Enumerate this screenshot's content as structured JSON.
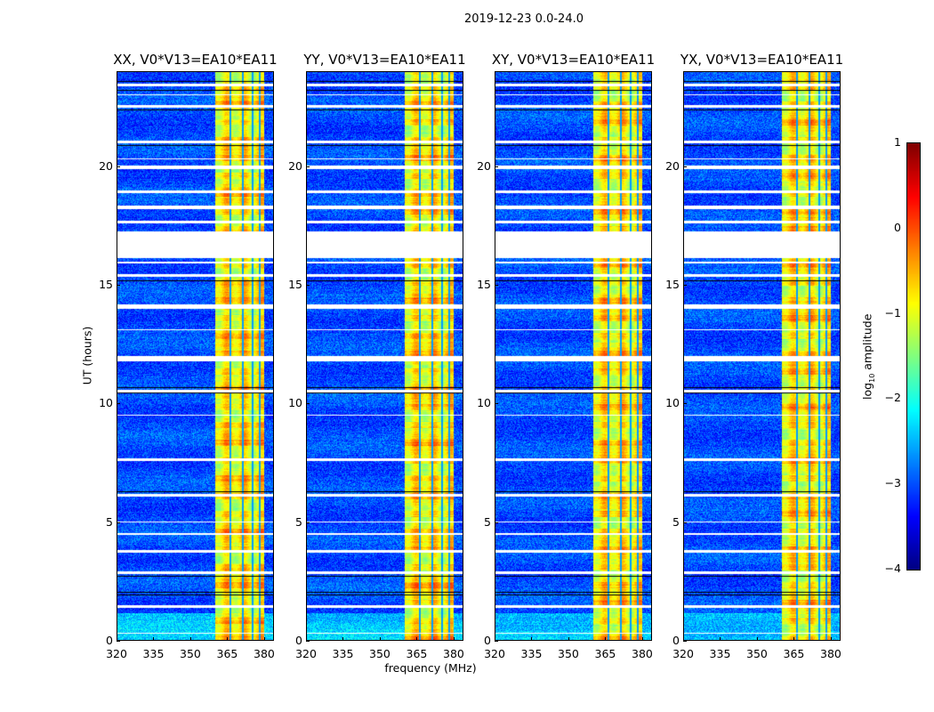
{
  "chart_data": {
    "type": "heatmap",
    "title": "2019-12-23 0.0-24.0",
    "panels": [
      {
        "title": "XX, V0*V13=EA10*EA11"
      },
      {
        "title": "YY, V0*V13=EA10*EA11"
      },
      {
        "title": "XY, V0*V13=EA10*EA11"
      },
      {
        "title": "YX, V0*V13=EA10*EA11"
      }
    ],
    "xlabel": "frequency (MHz)",
    "ylabel": "UT (hours)",
    "xlim": [
      320,
      384
    ],
    "ylim": [
      0,
      24
    ],
    "xticks": [
      "320",
      "335",
      "350",
      "365",
      "380"
    ],
    "xtick_values": [
      320,
      335,
      350,
      365,
      380
    ],
    "yticks": [
      "0",
      "5",
      "10",
      "15",
      "20"
    ],
    "ytick_values": [
      0,
      5,
      10,
      15,
      20
    ],
    "colormap": "jet",
    "colorbar": {
      "label_main": "log",
      "label_sub": "10",
      "label_rest": " amplitude",
      "range": [
        -4,
        1
      ],
      "ticks": [
        "1",
        "0",
        "−1",
        "−2",
        "−3",
        "−4"
      ],
      "tick_values": [
        1,
        0,
        -1,
        -2,
        -3,
        -4
      ]
    },
    "background_level": -3.0,
    "band": {
      "range_mhz": [
        360,
        380
      ],
      "level": -0.9,
      "gaps_mhz": [
        366,
        371,
        375,
        378
      ]
    },
    "flagged_hours": [
      [
        0.3,
        0.36
      ],
      [
        1.4,
        1.5
      ],
      [
        2.85,
        2.95
      ],
      [
        3.75,
        3.85
      ],
      [
        4.5,
        4.56
      ],
      [
        5.0,
        5.05
      ],
      [
        6.1,
        6.2
      ],
      [
        7.6,
        7.7
      ],
      [
        9.5,
        9.56
      ],
      [
        10.5,
        10.6
      ],
      [
        11.8,
        12.0
      ],
      [
        13.1,
        13.16
      ],
      [
        14.0,
        14.2
      ],
      [
        15.35,
        15.45
      ],
      [
        15.9,
        16.0
      ],
      [
        16.15,
        17.25
      ],
      [
        17.6,
        17.7
      ],
      [
        18.2,
        18.35
      ],
      [
        18.9,
        19.0
      ],
      [
        19.9,
        20.05
      ],
      [
        20.3,
        20.36
      ],
      [
        21.0,
        21.1
      ],
      [
        22.5,
        22.6
      ],
      [
        23.0,
        23.06
      ],
      [
        23.4,
        23.5
      ]
    ],
    "dark_hours": [
      1.95,
      2.05,
      2.75,
      6.3,
      10.45,
      10.7,
      15.2,
      20.9,
      22.4,
      23.2,
      23.6
    ]
  }
}
